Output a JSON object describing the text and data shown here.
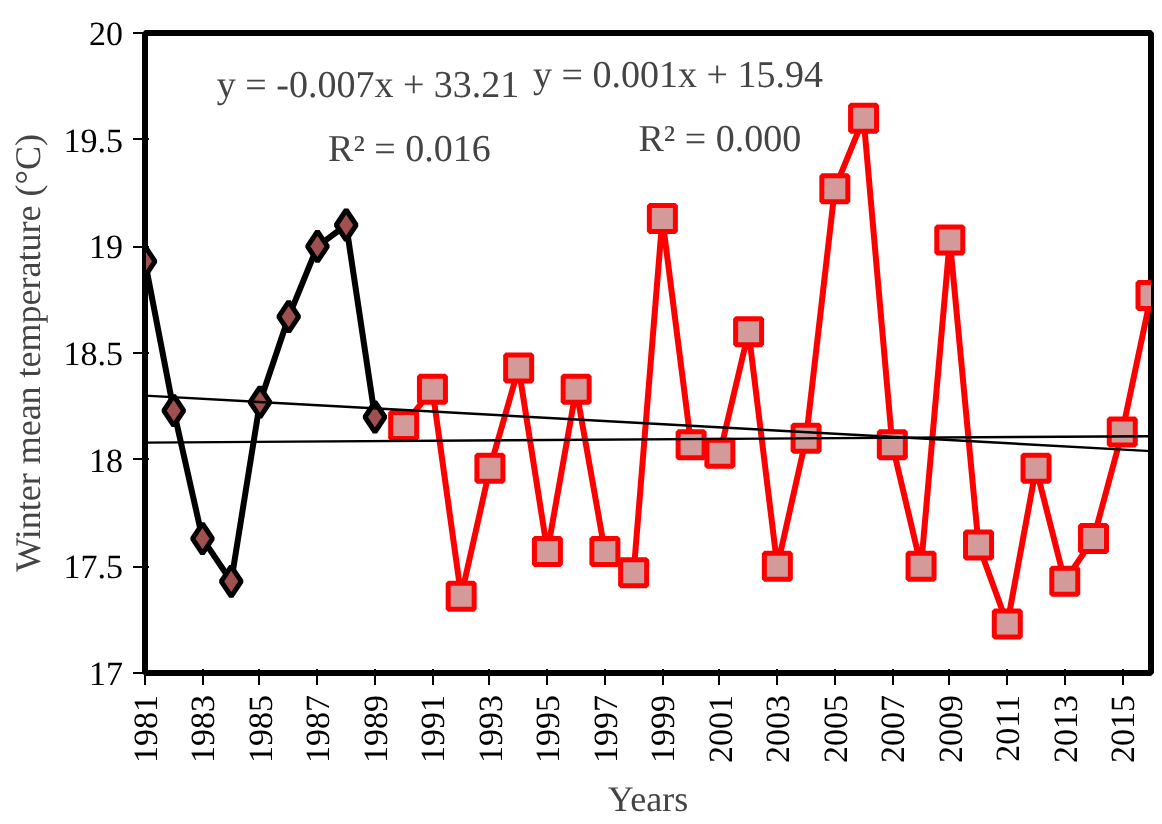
{
  "chart_data": {
    "type": "line",
    "xlabel": "Years",
    "ylabel": "Winter mean temperature (°C)",
    "xlim": [
      1981,
      2016
    ],
    "ylim": [
      17,
      20
    ],
    "xticks": [
      1981,
      1983,
      1985,
      1987,
      1989,
      1991,
      1993,
      1995,
      1997,
      1999,
      2001,
      2003,
      2005,
      2007,
      2009,
      2011,
      2013,
      2015
    ],
    "yticks": [
      17,
      17.5,
      18,
      18.5,
      19,
      19.5,
      20
    ],
    "grid": false,
    "line_style": "solid",
    "series": [
      {
        "color": "#000000",
        "marker": "diamond",
        "x": [
          1981,
          1982,
          1983,
          1984,
          1985,
          1986,
          1987,
          1988,
          1989
        ],
        "values": [
          18.93,
          18.23,
          17.63,
          17.43,
          18.27,
          18.67,
          19.0,
          19.1,
          18.2
        ]
      },
      {
        "color": "#ff0000",
        "marker": "square",
        "x": [
          1990,
          1991,
          1992,
          1993,
          1994,
          1995,
          1996,
          1997,
          1998,
          1999,
          2000,
          2001,
          2002,
          2003,
          2004,
          2005,
          2006,
          2007,
          2008,
          2009,
          2010,
          2011,
          2012,
          2013,
          2014,
          2015,
          2016
        ],
        "values": [
          18.16,
          18.33,
          17.36,
          17.96,
          18.43,
          17.57,
          18.33,
          17.57,
          17.47,
          19.13,
          18.07,
          18.03,
          18.6,
          17.5,
          18.1,
          19.27,
          19.6,
          18.07,
          17.5,
          19.03,
          17.6,
          17.23,
          17.96,
          17.43,
          17.63,
          18.13,
          18.77
        ]
      },
      {
        "color": "#000000",
        "marker": "none",
        "x": [
          1981,
          2016
        ],
        "values": [
          18.3,
          18.04
        ]
      },
      {
        "color": "#000000",
        "marker": "none",
        "x": [
          1981,
          2016
        ],
        "values": [
          18.08,
          18.11
        ]
      }
    ],
    "annotations": [
      "y = -0.007x + 33.21\nR² = 0.016",
      "y = 0.001x + 15.94\nR² = 0.000"
    ]
  }
}
